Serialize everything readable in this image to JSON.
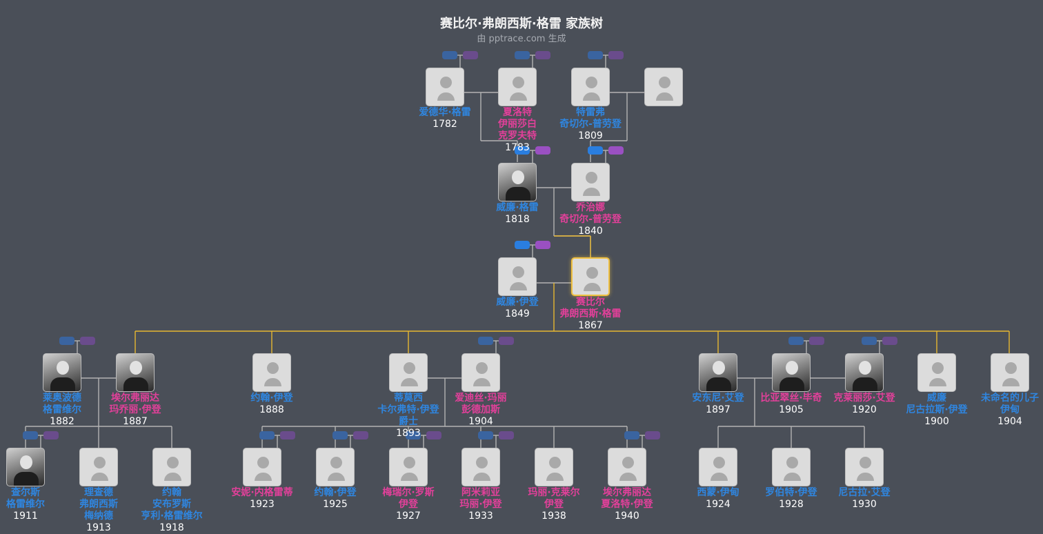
{
  "title": "赛比尔·弗朗西斯·格雷 家族树",
  "subtitle": "由 pptrace.com 生成",
  "colors": {
    "male": "#2f86e0",
    "female": "#e2409a",
    "highlight_line": "#e8b830",
    "line": "#b4b4b4",
    "background": "#4a4f58"
  },
  "people": [
    {
      "name_lines": [
        "爱德华·格雷"
      ],
      "year": "1782",
      "gender": "male",
      "photo": false
    },
    {
      "name_lines": [
        "夏洛特",
        "伊丽莎白",
        "克罗夫特"
      ],
      "year": "1783",
      "gender": "female",
      "photo": false
    },
    {
      "name_lines": [
        "特雷弗",
        "奇切尔-普劳登"
      ],
      "year": "1809",
      "gender": "male",
      "photo": false
    },
    {
      "name_lines": [],
      "year": "",
      "gender": "unknown",
      "photo": false
    },
    {
      "name_lines": [
        "威廉·格雷"
      ],
      "year": "1818",
      "gender": "male",
      "photo": true
    },
    {
      "name_lines": [
        "乔治娜",
        "奇切尔-普劳登"
      ],
      "year": "1840",
      "gender": "female",
      "photo": false
    },
    {
      "name_lines": [
        "威廉·伊登"
      ],
      "year": "1849",
      "gender": "male",
      "photo": false
    },
    {
      "name_lines": [
        "赛比尔",
        "弗朗西斯·格雷"
      ],
      "year": "1867",
      "gender": "female",
      "photo": false,
      "highlighted": true
    },
    {
      "name_lines": [
        "莱奥波德",
        "格雷维尔"
      ],
      "year": "1882",
      "gender": "male",
      "photo": true
    },
    {
      "name_lines": [
        "埃尔弗丽达",
        "玛乔丽·伊登"
      ],
      "year": "1887",
      "gender": "female",
      "photo": true
    },
    {
      "name_lines": [
        "约翰·伊登"
      ],
      "year": "1888",
      "gender": "male",
      "photo": false
    },
    {
      "name_lines": [
        "蒂莫西",
        "卡尔弗特·伊登",
        "爵士"
      ],
      "year": "1893",
      "gender": "male",
      "photo": false
    },
    {
      "name_lines": [
        "爱迪丝·玛丽",
        "彭德加斯"
      ],
      "year": "1904",
      "gender": "female",
      "photo": false
    },
    {
      "name_lines": [
        "安东尼·艾登"
      ],
      "year": "1897",
      "gender": "male",
      "photo": true
    },
    {
      "name_lines": [
        "比亚翠丝·毕奇"
      ],
      "year": "1905",
      "gender": "female",
      "photo": true
    },
    {
      "name_lines": [
        "克莱丽莎·艾登"
      ],
      "year": "1920",
      "gender": "female",
      "photo": true
    },
    {
      "name_lines": [
        "威廉",
        "尼古拉斯·伊登"
      ],
      "year": "1900",
      "gender": "male",
      "photo": false
    },
    {
      "name_lines": [
        "未命名的儿子",
        "伊甸"
      ],
      "year": "1904",
      "gender": "male",
      "photo": false
    },
    {
      "name_lines": [
        "查尔斯",
        "格雷维尔"
      ],
      "year": "1911",
      "gender": "male",
      "photo": true
    },
    {
      "name_lines": [
        "理查德",
        "弗朗西斯",
        "梅纳德"
      ],
      "year": "1913",
      "gender": "male",
      "photo": false
    },
    {
      "name_lines": [
        "约翰",
        "安布罗斯",
        "亨利·格雷维尔"
      ],
      "year": "1918",
      "gender": "male",
      "photo": false
    },
    {
      "name_lines": [
        "安妮·内格雷蒂"
      ],
      "year": "1923",
      "gender": "female",
      "photo": false
    },
    {
      "name_lines": [
        "约翰·伊登"
      ],
      "year": "1925",
      "gender": "male",
      "photo": false
    },
    {
      "name_lines": [
        "梅瑞尔·罗斯",
        "伊登"
      ],
      "year": "1927",
      "gender": "female",
      "photo": false
    },
    {
      "name_lines": [
        "阿米莉亚",
        "玛丽·伊登"
      ],
      "year": "1933",
      "gender": "female",
      "photo": false
    },
    {
      "name_lines": [
        "玛丽·克莱尔",
        "伊登"
      ],
      "year": "1938",
      "gender": "female",
      "photo": false
    },
    {
      "name_lines": [
        "埃尔弗丽达",
        "夏洛特·伊登"
      ],
      "year": "1940",
      "gender": "female",
      "photo": false
    },
    {
      "name_lines": [
        "西蒙·伊甸"
      ],
      "year": "1924",
      "gender": "male",
      "photo": false
    },
    {
      "name_lines": [
        "罗伯特·伊登"
      ],
      "year": "1928",
      "gender": "male",
      "photo": false
    },
    {
      "name_lines": [
        "尼古拉·艾登"
      ],
      "year": "1930",
      "gender": "male",
      "photo": false
    }
  ]
}
